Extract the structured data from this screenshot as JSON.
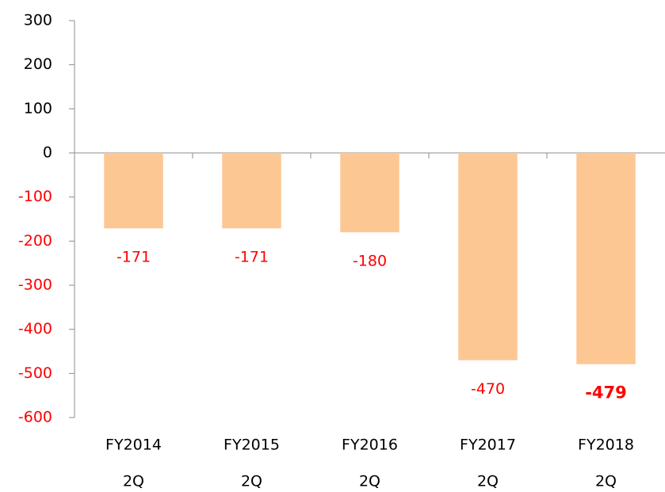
{
  "chart_data": {
    "type": "bar",
    "categories": [
      [
        "FY2014",
        "2Q"
      ],
      [
        "FY2015",
        "2Q"
      ],
      [
        "FY2016",
        "2Q"
      ],
      [
        "FY2017",
        "2Q"
      ],
      [
        "FY2018",
        "2Q"
      ]
    ],
    "values": [
      -171,
      -171,
      -180,
      -470,
      -479
    ],
    "color": "#fdc794",
    "label_color": "#ff0000",
    "negative_tick_color": "#ff0000",
    "ylim": [
      -600,
      300
    ],
    "yticks": [
      300,
      200,
      100,
      0,
      -100,
      -200,
      -300,
      -400,
      -500,
      -600
    ],
    "grid": false
  }
}
